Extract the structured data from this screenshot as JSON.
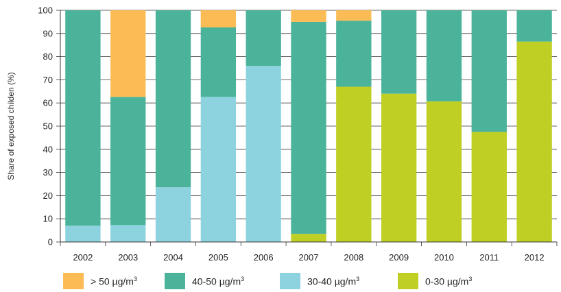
{
  "chart_data": {
    "type": "bar",
    "stacked": true,
    "categories": [
      "2002",
      "2003",
      "2004",
      "2005",
      "2006",
      "2007",
      "2008",
      "2009",
      "2010",
      "2011",
      "2012"
    ],
    "series": [
      {
        "name": "0-30 µg/m3",
        "color": "#c0cf23",
        "values": [
          0,
          0,
          0,
          0,
          0,
          3.5,
          67,
          64,
          60.7,
          47.5,
          86.5
        ]
      },
      {
        "name": "30-40 µg/m3",
        "color": "#8dd3df",
        "values": [
          7,
          7.3,
          23.6,
          62.6,
          76,
          0,
          0,
          0,
          0,
          0,
          0
        ]
      },
      {
        "name": "40-50 µg/m3",
        "color": "#4cb39b",
        "values": [
          93,
          55.3,
          76.4,
          30,
          24,
          91.5,
          28.5,
          36,
          39.3,
          52.5,
          13.5
        ]
      },
      {
        "name": "> 50 µg/m3",
        "color": "#fbbc55",
        "values": [
          0,
          37.4,
          0,
          7.4,
          0,
          5,
          4.5,
          0,
          0,
          0,
          0
        ]
      }
    ],
    "ylabel": "Share of exposed childen (%)",
    "xlabel": "",
    "ylim": [
      0,
      100
    ],
    "yticks": [
      0,
      10,
      20,
      30,
      40,
      50,
      60,
      70,
      80,
      90,
      100
    ],
    "grid": "horizontal",
    "legend_position": "bottom"
  },
  "legend": [
    {
      "label": "> 50 µg/m",
      "sup": "3",
      "color": "#fbbc55"
    },
    {
      "label": "40-50 µg/m",
      "sup": "3",
      "color": "#4cb39b"
    },
    {
      "label": "30-40 µg/m",
      "sup": "3",
      "color": "#8dd3df"
    },
    {
      "label": "0-30 µg/m",
      "sup": "3",
      "color": "#c0cf23"
    }
  ]
}
